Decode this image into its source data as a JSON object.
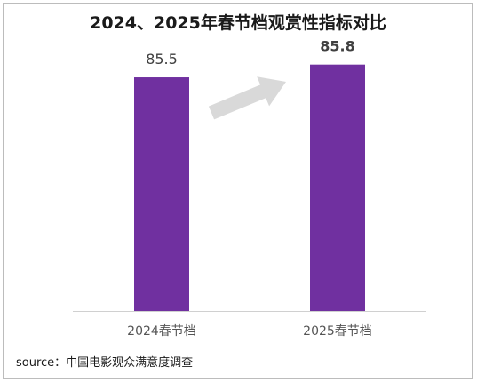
{
  "chart_data": {
    "type": "bar",
    "title": "2024、2025年春节档观赏性指标对比",
    "categories": [
      "2024春节档",
      "2025春节档"
    ],
    "values": [
      85.5,
      85.8
    ],
    "value_labels": [
      "85.5",
      "85.8"
    ],
    "highlight_index": 1,
    "ylim": [
      80,
      86.4
    ],
    "grid": false,
    "legend": "none",
    "bar_color": "#7030a0",
    "arrow_color": "#d9d9d9",
    "source": "source：中国电影观众满意度调查"
  }
}
